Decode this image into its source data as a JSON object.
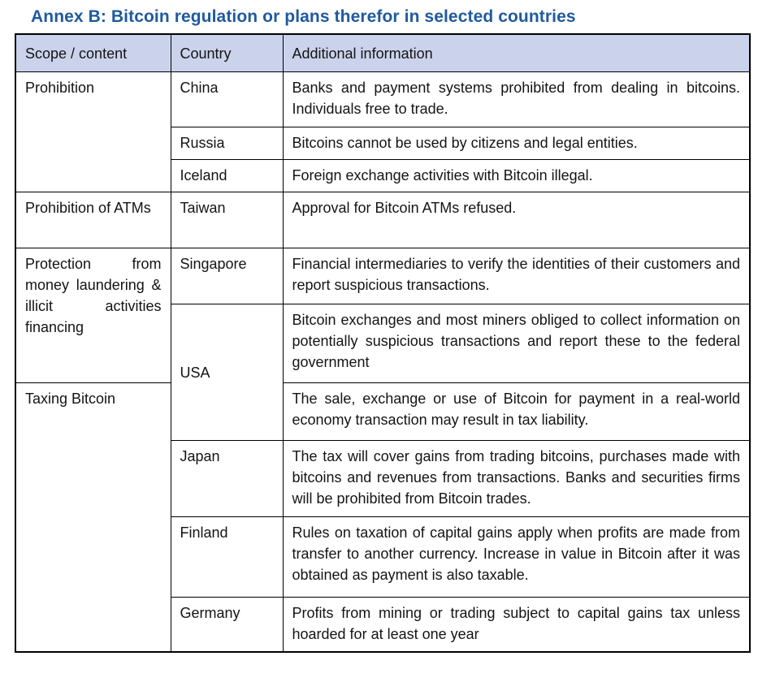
{
  "page": {
    "title": "Annex B: Bitcoin regulation or plans therefor in selected countries"
  },
  "colors": {
    "title_text": "#1F5A9E",
    "header_background": "#CBD3EC",
    "table_border": "#000000",
    "body_text": "#141414"
  },
  "table": {
    "headers": {
      "scope": "Scope / content",
      "country": "Country",
      "info": "Additional information"
    },
    "rows": [
      {
        "scope": "Prohibition",
        "country": "China",
        "info": "Banks and payment systems prohibited from dealing in bitcoins. Individuals free to trade."
      },
      {
        "country": "Russia",
        "info": "Bitcoins cannot be used by citizens and legal entities."
      },
      {
        "country": "Iceland",
        "info": "Foreign exchange activities with Bitcoin illegal."
      },
      {
        "scope": "Prohibition of ATMs",
        "country": "Taiwan",
        "info": "Approval for Bitcoin ATMs refused."
      },
      {
        "scope": "Protection from money laundering & illicit activities financing",
        "country": "Singapore",
        "info": "Financial intermediaries to verify the identities of their customers and report suspicious transactions."
      },
      {
        "country": "USA",
        "info": "Bitcoin exchanges and most miners obliged to collect information on potentially suspicious transactions and report these to the federal government"
      },
      {
        "scope": "Taxing Bitcoin",
        "info": "The sale, exchange or use of Bitcoin for payment in a real-world economy transaction may result in tax liability."
      },
      {
        "country": "Japan",
        "info": "The tax will cover gains from trading bitcoins, purchases made with bitcoins and revenues from transactions. Banks and securities firms will be prohibited from Bitcoin trades."
      },
      {
        "country": "Finland",
        "info": "Rules on taxation of capital gains apply when profits are made from transfer to another currency. Increase in value in Bitcoin after it was obtained as payment is also taxable."
      },
      {
        "country": "Germany",
        "info": "Profits from mining or trading subject to capital gains tax unless hoarded for at least one year"
      }
    ]
  }
}
